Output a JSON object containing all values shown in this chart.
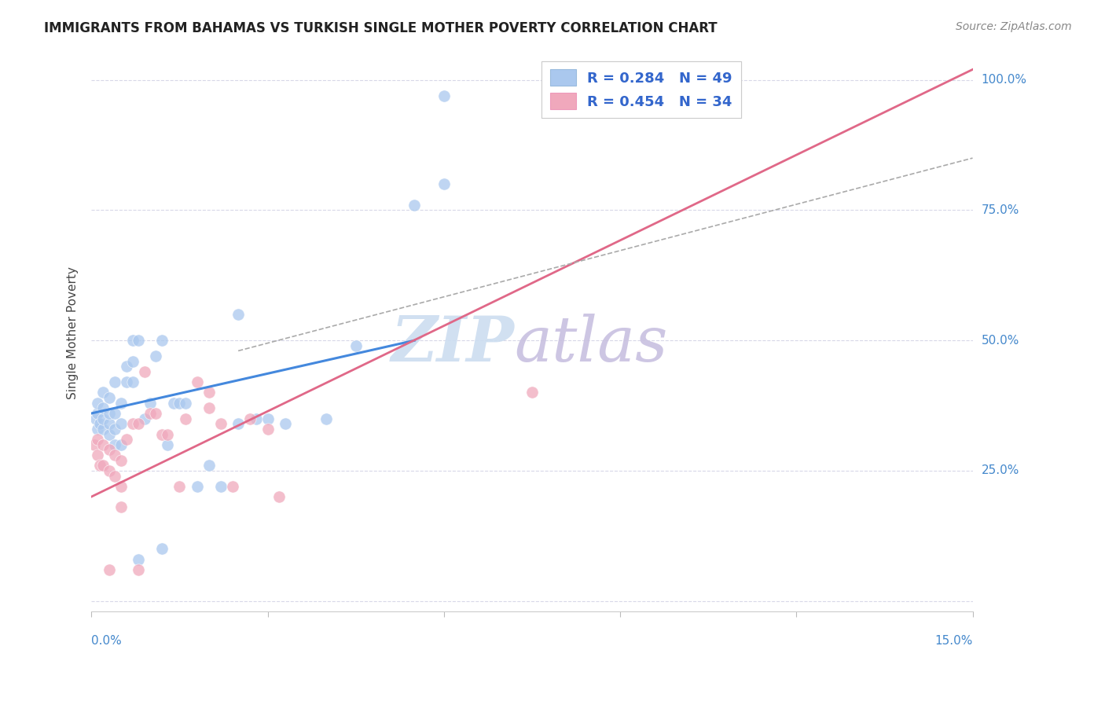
{
  "title": "IMMIGRANTS FROM BAHAMAS VS TURKISH SINGLE MOTHER POVERTY CORRELATION CHART",
  "source": "Source: ZipAtlas.com",
  "ylabel": "Single Mother Poverty",
  "xlim": [
    0,
    0.15
  ],
  "ylim": [
    -0.02,
    1.05
  ],
  "ytick_vals": [
    0.0,
    0.25,
    0.5,
    0.75,
    1.0
  ],
  "ytick_labels": [
    "",
    "25.0%",
    "50.0%",
    "75.0%",
    "100.0%"
  ],
  "xtick_vals": [
    0.0,
    0.03,
    0.06,
    0.09,
    0.12,
    0.15
  ],
  "color_blue": "#aac8ee",
  "color_pink": "#f0a8bc",
  "color_blue_line": "#4488dd",
  "color_pink_line": "#e06888",
  "color_grey_dash": "#aaaaaa",
  "legend_text_color": "#3366cc",
  "watermark_zip_color": "#ccddf0",
  "watermark_atlas_color": "#c8c0e0",
  "blue_scatter_x": [
    0.0008,
    0.001,
    0.001,
    0.001,
    0.0015,
    0.002,
    0.002,
    0.002,
    0.002,
    0.003,
    0.003,
    0.003,
    0.003,
    0.004,
    0.004,
    0.004,
    0.004,
    0.005,
    0.005,
    0.005,
    0.006,
    0.006,
    0.007,
    0.007,
    0.007,
    0.008,
    0.009,
    0.01,
    0.011,
    0.012,
    0.013,
    0.014,
    0.015,
    0.016,
    0.018,
    0.02,
    0.022,
    0.025,
    0.028,
    0.03,
    0.033,
    0.04,
    0.045,
    0.055,
    0.06,
    0.025,
    0.012,
    0.008,
    0.06
  ],
  "blue_scatter_y": [
    0.35,
    0.33,
    0.36,
    0.38,
    0.34,
    0.33,
    0.35,
    0.37,
    0.4,
    0.32,
    0.34,
    0.36,
    0.39,
    0.3,
    0.33,
    0.36,
    0.42,
    0.3,
    0.34,
    0.38,
    0.42,
    0.45,
    0.42,
    0.46,
    0.5,
    0.5,
    0.35,
    0.38,
    0.47,
    0.5,
    0.3,
    0.38,
    0.38,
    0.38,
    0.22,
    0.26,
    0.22,
    0.34,
    0.35,
    0.35,
    0.34,
    0.35,
    0.49,
    0.76,
    0.8,
    0.55,
    0.1,
    0.08,
    0.97
  ],
  "pink_scatter_x": [
    0.0005,
    0.001,
    0.001,
    0.0015,
    0.002,
    0.002,
    0.003,
    0.003,
    0.004,
    0.004,
    0.005,
    0.005,
    0.006,
    0.007,
    0.008,
    0.009,
    0.01,
    0.011,
    0.012,
    0.013,
    0.015,
    0.016,
    0.018,
    0.02,
    0.022,
    0.024,
    0.027,
    0.03,
    0.032,
    0.02,
    0.008,
    0.003,
    0.005,
    0.075
  ],
  "pink_scatter_y": [
    0.3,
    0.28,
    0.31,
    0.26,
    0.26,
    0.3,
    0.25,
    0.29,
    0.24,
    0.28,
    0.22,
    0.27,
    0.31,
    0.34,
    0.34,
    0.44,
    0.36,
    0.36,
    0.32,
    0.32,
    0.22,
    0.35,
    0.42,
    0.37,
    0.34,
    0.22,
    0.35,
    0.33,
    0.2,
    0.4,
    0.06,
    0.06,
    0.18,
    0.4
  ],
  "blue_line_x": [
    0.0,
    0.055
  ],
  "blue_line_y": [
    0.36,
    0.5
  ],
  "pink_line_x": [
    0.0,
    0.15
  ],
  "pink_line_y": [
    0.2,
    1.02
  ],
  "grey_dash_line_x": [
    0.025,
    0.15
  ],
  "grey_dash_line_y": [
    0.48,
    0.85
  ],
  "background_color": "#ffffff",
  "grid_color": "#d8d8e8",
  "grid_linestyle": "--"
}
